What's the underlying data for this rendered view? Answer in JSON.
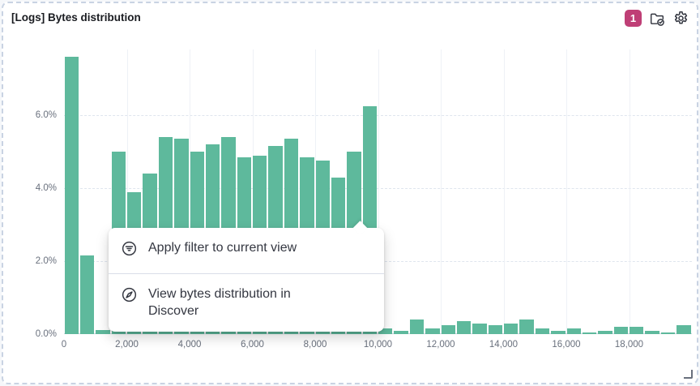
{
  "panel": {
    "title": "[Logs] Bytes distribution",
    "badge_count": "1",
    "accent_color": "#bf3f76",
    "icons": [
      "notification-badge",
      "folder-check-icon",
      "gear-icon"
    ]
  },
  "context_menu": {
    "items": [
      {
        "icon": "filter-in-circle-icon",
        "label": "Apply filter to current view"
      },
      {
        "icon": "compass-discover-icon",
        "label": "View bytes distribution in Discover"
      }
    ]
  },
  "chart_data": {
    "type": "bar",
    "title": "[Logs] Bytes distribution",
    "xlabel": "",
    "ylabel": "",
    "bar_color": "#5eb99c",
    "grid": true,
    "xlim": [
      0,
      20000
    ],
    "ylim": [
      0,
      7.8
    ],
    "bin_width": 500,
    "x_tick_values": [
      0,
      2000,
      4000,
      6000,
      8000,
      10000,
      12000,
      14000,
      16000,
      18000
    ],
    "x_tick_labels": [
      "0",
      "2,000",
      "4,000",
      "6,000",
      "8,000",
      "10,000",
      "12,000",
      "14,000",
      "16,000",
      "18,000"
    ],
    "y_tick_values": [
      0,
      2,
      4,
      6
    ],
    "y_tick_labels": [
      "0.0%",
      "2.0%",
      "4.0%",
      "6.0%"
    ],
    "values_percent": [
      7.6,
      2.15,
      0.12,
      5.0,
      3.9,
      4.4,
      5.4,
      5.35,
      5.0,
      5.2,
      5.4,
      4.85,
      4.9,
      5.15,
      5.35,
      4.85,
      4.75,
      4.3,
      5.0,
      6.25,
      0.15,
      0.1,
      0.4,
      0.15,
      0.25,
      0.35,
      0.3,
      0.25,
      0.3,
      0.4,
      0.15,
      0.1,
      0.15,
      0.05,
      0.1,
      0.2,
      0.2,
      0.1,
      0.05,
      0.25
    ]
  }
}
